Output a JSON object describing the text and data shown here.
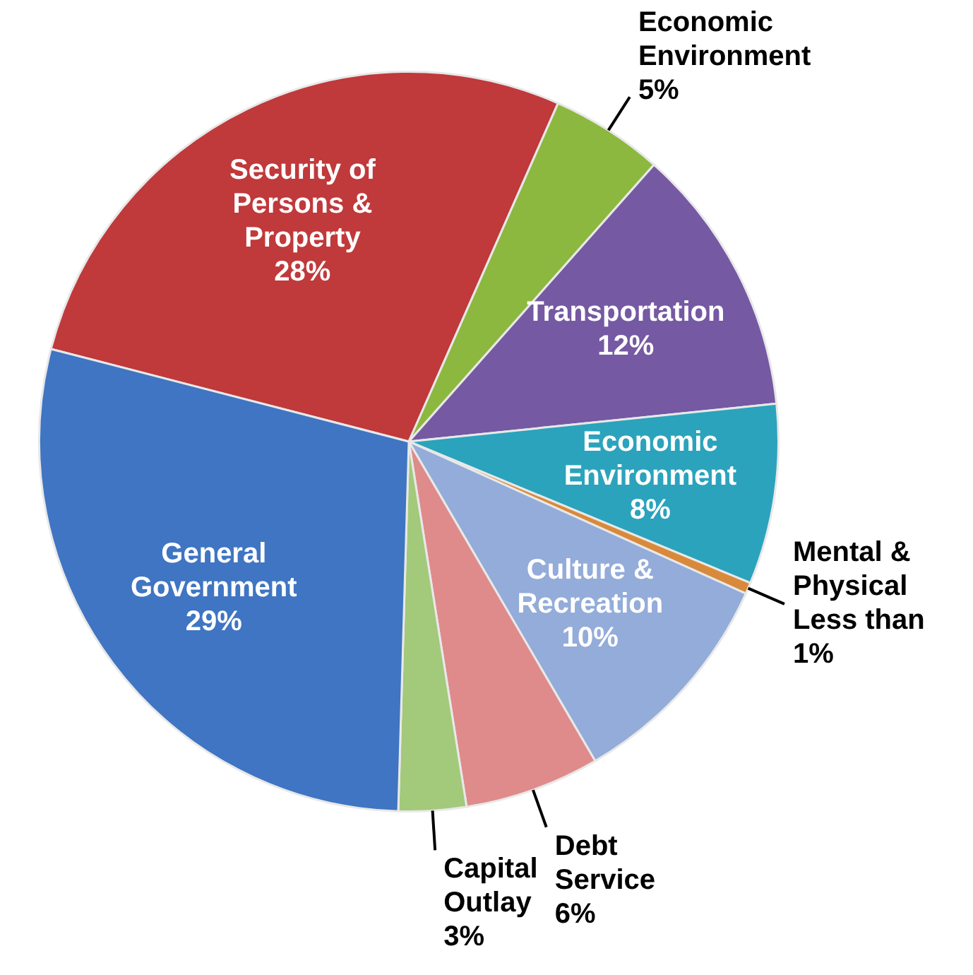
{
  "chart_data": {
    "type": "pie",
    "legend": false,
    "categories": [
      "Security of Persons & Property",
      "Economic Environment",
      "Transportation",
      "Economic Environment",
      "Mental & Physical",
      "Culture & Recreation",
      "Debt Service",
      "Capital Outlay",
      "General Government"
    ],
    "values": [
      28,
      5,
      12,
      8,
      0.5,
      10,
      6,
      3,
      29
    ],
    "value_labels": [
      "28%",
      "5%",
      "12%",
      "8%",
      "Less than 1%",
      "10%",
      "6%",
      "3%",
      "29%"
    ],
    "colors": [
      "#c0393b",
      "#8cb83f",
      "#7559a3",
      "#2ba3bc",
      "#d88a3a",
      "#93acd9",
      "#df8b8b",
      "#a3c97b",
      "#3f75c2"
    ]
  }
}
